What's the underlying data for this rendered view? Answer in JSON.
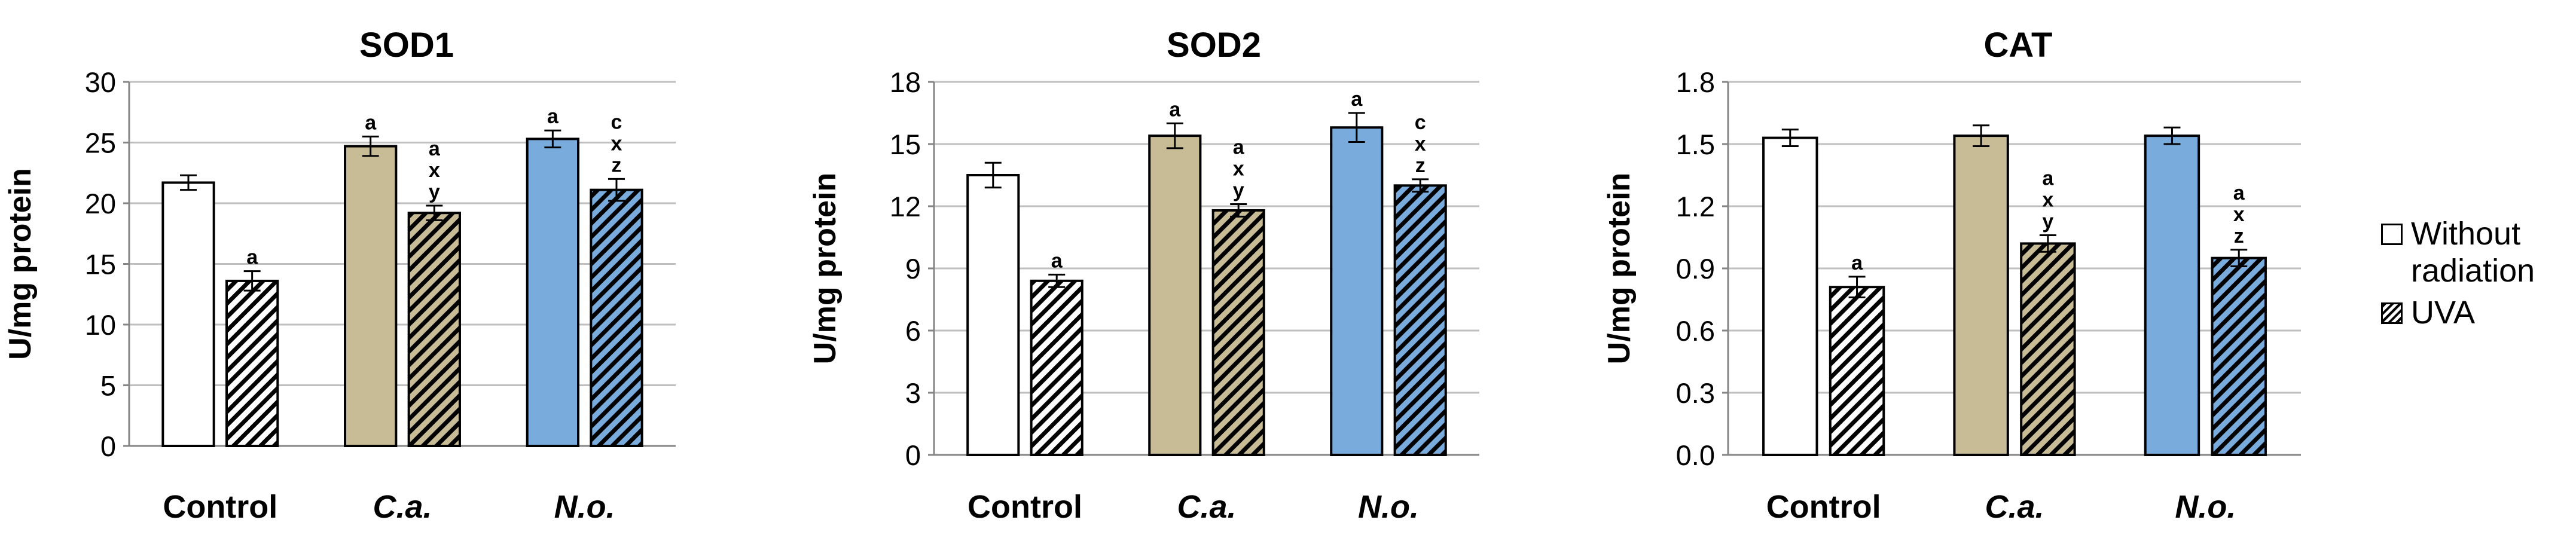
{
  "legend": [
    {
      "label": "Without radiation",
      "pattern": "solid"
    },
    {
      "label": "UVA",
      "pattern": "hatched"
    }
  ],
  "colors": {
    "control": "#ffffff",
    "ca": "#c8bc96",
    "no": "#79acdd",
    "bar_stroke": "#000000",
    "grid": "#bfbfbf"
  },
  "chart_data": [
    {
      "type": "bar",
      "title": "SOD1",
      "ylabel": "U/mg protein",
      "xlabel": "",
      "ylim": [
        0,
        30
      ],
      "yticks": [
        0,
        5,
        10,
        15,
        20,
        25,
        30
      ],
      "grid": true,
      "categories": [
        "Control",
        "C.a.",
        "N.o."
      ],
      "category_italic": [
        false,
        true,
        true
      ],
      "series": [
        {
          "name": "Without radiation",
          "values": [
            21.7,
            24.7,
            25.3
          ],
          "errors": [
            0.6,
            0.8,
            0.7
          ],
          "labels": [
            "",
            "a",
            "a"
          ]
        },
        {
          "name": "UVA",
          "values": [
            13.6,
            19.2,
            21.1
          ],
          "errors": [
            0.8,
            0.6,
            0.9
          ],
          "labels": [
            "a",
            "a\nx\ny",
            "c\nx\nz"
          ]
        }
      ]
    },
    {
      "type": "bar",
      "title": "SOD2",
      "ylabel": "U/mg protein",
      "xlabel": "",
      "ylim": [
        0,
        18
      ],
      "yticks": [
        0,
        3,
        6,
        9,
        12,
        15,
        18
      ],
      "grid": true,
      "categories": [
        "Control",
        "C.a.",
        "N.o."
      ],
      "category_italic": [
        false,
        true,
        true
      ],
      "series": [
        {
          "name": "Without radiation",
          "values": [
            13.5,
            15.4,
            15.8
          ],
          "errors": [
            0.6,
            0.6,
            0.7
          ],
          "labels": [
            "",
            "a",
            "a"
          ]
        },
        {
          "name": "UVA",
          "values": [
            8.4,
            11.8,
            13.0
          ],
          "errors": [
            0.3,
            0.3,
            0.3
          ],
          "labels": [
            "a",
            "a\nx\ny",
            "c\nx\nz"
          ]
        }
      ]
    },
    {
      "type": "bar",
      "title": "CAT",
      "ylabel": "U/mg protein",
      "xlabel": "",
      "ylim": [
        0,
        1.8
      ],
      "yticks": [
        0,
        0.3,
        0.6,
        0.9,
        1.2,
        1.5,
        1.8
      ],
      "grid": true,
      "categories": [
        "Control",
        "C.a.",
        "N.o."
      ],
      "category_italic": [
        false,
        true,
        true
      ],
      "series": [
        {
          "name": "Without radiation",
          "values": [
            1.53,
            1.54,
            1.54
          ],
          "errors": [
            0.04,
            0.05,
            0.04
          ],
          "labels": [
            "",
            "",
            ""
          ]
        },
        {
          "name": "UVA",
          "values": [
            0.81,
            1.02,
            0.95
          ],
          "errors": [
            0.05,
            0.04,
            0.04
          ],
          "labels": [
            "a",
            "a\nx\ny",
            "a\nx\nz"
          ]
        }
      ]
    }
  ]
}
